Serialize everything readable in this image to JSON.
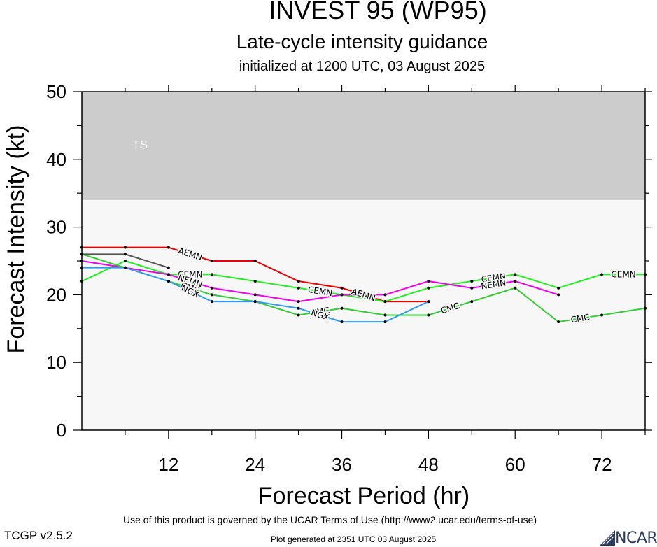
{
  "header": {
    "title": "INVEST 95 (WP95)",
    "subtitle": "Late-cycle intensity guidance",
    "init": "initialized at 1200 UTC, 03 August 2025"
  },
  "footer": {
    "terms": "Use of this product is governed by the UCAR Terms of Use (http://www2.ucar.edu/terms-of-use)",
    "version": "TCGP v2.5.2",
    "generated": "Plot generated at 2351 UTC   03 August 2025",
    "logo_text": "NCAR"
  },
  "chart_data": {
    "type": "line",
    "xlabel": "Forecast Period (hr)",
    "ylabel": "Forecast Intensity (kt)",
    "xlim": [
      0,
      78
    ],
    "ylim": [
      0,
      50
    ],
    "xticks": [
      12,
      24,
      36,
      48,
      60,
      72
    ],
    "yticks": [
      0,
      10,
      20,
      30,
      40,
      50
    ],
    "bands": [
      {
        "label": "TS",
        "from": 34,
        "to": 50,
        "color": "#cccccc"
      }
    ],
    "plot_background": "#f7f7f7",
    "series": [
      {
        "name": "AEMN",
        "color": "#ee0000",
        "x": [
          0,
          6,
          12,
          18,
          24,
          30,
          36,
          42,
          48
        ],
        "y": [
          27,
          27,
          27,
          25,
          25,
          22,
          21,
          19,
          19
        ]
      },
      {
        "name": "CEMN",
        "color": "#22ee22",
        "x": [
          0,
          6,
          12,
          18,
          24,
          30,
          36,
          42,
          48,
          54,
          60,
          66,
          72,
          78
        ],
        "y": [
          22,
          25,
          23,
          23,
          22,
          21,
          20,
          19,
          21,
          22,
          23,
          21,
          23,
          23
        ]
      },
      {
        "name": "NEMN",
        "color": "#ee00ee",
        "x": [
          0,
          6,
          12,
          18,
          24,
          30,
          36,
          42,
          48,
          54,
          60,
          66
        ],
        "y": [
          25,
          24,
          23,
          21,
          20,
          19,
          20,
          20,
          22,
          21,
          22,
          20
        ]
      },
      {
        "name": "CMC",
        "color": "#33cc33",
        "x": [
          0,
          6,
          12,
          18,
          24,
          30,
          36,
          42,
          48,
          54,
          60,
          66,
          72,
          78
        ],
        "y": [
          26,
          24,
          22,
          20,
          19,
          17,
          18,
          17,
          17,
          19,
          21,
          16,
          17,
          18
        ]
      },
      {
        "name": "NGX",
        "color": "#3399ee",
        "x": [
          0,
          6,
          12,
          18,
          24,
          30,
          36,
          42,
          48
        ],
        "y": [
          24,
          24,
          22,
          19,
          19,
          18,
          16,
          16,
          19
        ]
      },
      {
        "name": "",
        "color": "#555555",
        "x": [
          0,
          6,
          12
        ],
        "y": [
          26,
          26,
          24
        ]
      }
    ]
  }
}
